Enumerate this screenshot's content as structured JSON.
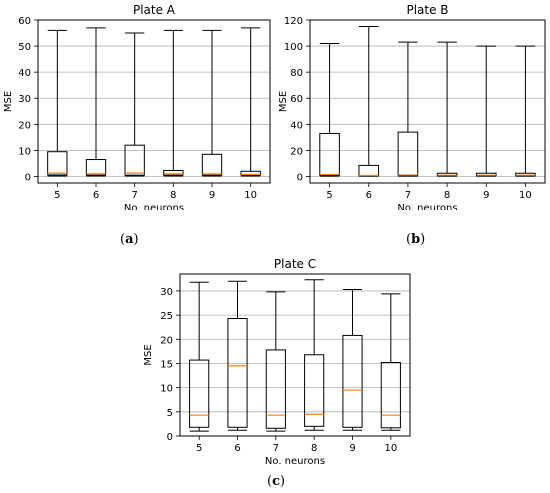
{
  "chart_data": [
    {
      "type": "box",
      "title": "Plate A",
      "xlabel": "No. neurons",
      "ylabel": "MSE",
      "ylim": [
        -2.5,
        60
      ],
      "yticks": [
        0,
        10,
        20,
        30,
        40,
        50,
        60
      ],
      "categories": [
        "5",
        "6",
        "7",
        "8",
        "9",
        "10"
      ],
      "grid": "y",
      "caption": "a",
      "boxes": [
        {
          "min": 0.2,
          "q1": 0.6,
          "median": 1.3,
          "q3": 9.5,
          "max": 56
        },
        {
          "min": 0.2,
          "q1": 0.5,
          "median": 1.0,
          "q3": 6.5,
          "max": 57
        },
        {
          "min": 0.2,
          "q1": 0.5,
          "median": 1.3,
          "q3": 12,
          "max": 55
        },
        {
          "min": 0.2,
          "q1": 0.5,
          "median": 1.0,
          "q3": 2.3,
          "max": 56
        },
        {
          "min": 0.2,
          "q1": 0.5,
          "median": 1.0,
          "q3": 8.5,
          "max": 56
        },
        {
          "min": 0.2,
          "q1": 0.5,
          "median": 0.8,
          "q3": 2.0,
          "max": 57
        }
      ]
    },
    {
      "type": "box",
      "title": "Plate B",
      "xlabel": "No. neurons",
      "ylabel": "MSE",
      "ylim": [
        -5,
        120
      ],
      "yticks": [
        0,
        20,
        40,
        60,
        80,
        100,
        120
      ],
      "categories": [
        "5",
        "6",
        "7",
        "8",
        "9",
        "10"
      ],
      "grid": "y",
      "caption": "b",
      "boxes": [
        {
          "min": 0.3,
          "q1": 0.8,
          "median": 1.5,
          "q3": 33,
          "max": 102
        },
        {
          "min": 0.3,
          "q1": 0.5,
          "median": 0.8,
          "q3": 8.5,
          "max": 115
        },
        {
          "min": 0.3,
          "q1": 0.8,
          "median": 1.2,
          "q3": 34,
          "max": 103
        },
        {
          "min": 0.3,
          "q1": 0.6,
          "median": 1.0,
          "q3": 2.5,
          "max": 103
        },
        {
          "min": 0.3,
          "q1": 0.6,
          "median": 1.0,
          "q3": 2.5,
          "max": 100
        },
        {
          "min": 0.3,
          "q1": 0.6,
          "median": 1.0,
          "q3": 2.5,
          "max": 100
        }
      ]
    },
    {
      "type": "box",
      "title": "Plate C",
      "xlabel": "No. neurons",
      "ylabel": "MSE",
      "ylim": [
        0,
        33.5
      ],
      "yticks": [
        0,
        5,
        10,
        15,
        20,
        25,
        30
      ],
      "categories": [
        "5",
        "6",
        "7",
        "8",
        "9",
        "10"
      ],
      "grid": "y",
      "caption": "c",
      "boxes": [
        {
          "min": 1.0,
          "q1": 1.8,
          "median": 4.3,
          "q3": 15.7,
          "max": 31.8
        },
        {
          "min": 1.2,
          "q1": 1.8,
          "median": 14.5,
          "q3": 24.3,
          "max": 32.0
        },
        {
          "min": 1.0,
          "q1": 1.6,
          "median": 4.3,
          "q3": 17.8,
          "max": 29.8
        },
        {
          "min": 1.2,
          "q1": 2.0,
          "median": 4.5,
          "q3": 16.8,
          "max": 32.3
        },
        {
          "min": 1.2,
          "q1": 1.8,
          "median": 9.5,
          "q3": 20.8,
          "max": 30.3
        },
        {
          "min": 1.2,
          "q1": 1.7,
          "median": 4.3,
          "q3": 15.2,
          "max": 29.4
        }
      ]
    }
  ],
  "colors": {
    "median": "#ff7f0e",
    "box": "#000000",
    "grid": "#b0b0b0"
  }
}
